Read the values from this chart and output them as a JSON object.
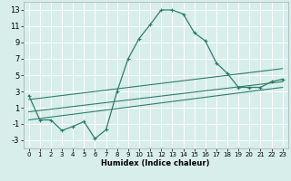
{
  "xlabel": "Humidex (Indice chaleur)",
  "xlim": [
    -0.5,
    23.5
  ],
  "ylim": [
    -4,
    14
  ],
  "yticks": [
    -3,
    -1,
    1,
    3,
    5,
    7,
    9,
    11,
    13
  ],
  "xticks": [
    0,
    1,
    2,
    3,
    4,
    5,
    6,
    7,
    8,
    9,
    10,
    11,
    12,
    13,
    14,
    15,
    16,
    17,
    18,
    19,
    20,
    21,
    22,
    23
  ],
  "background_color": "#d8eeeb",
  "grid_color": "#ffffff",
  "line_color": "#2e7d6e",
  "curve1_x": [
    0,
    1,
    2,
    3,
    4,
    5,
    6,
    7,
    8,
    9,
    10,
    11,
    12,
    13,
    14,
    15,
    16,
    17,
    18,
    19,
    20,
    21,
    22,
    23
  ],
  "curve1_y": [
    2.5,
    -0.5,
    -0.5,
    -1.8,
    -1.3,
    -0.7,
    -2.8,
    -1.7,
    3.0,
    7.0,
    9.5,
    11.2,
    13.0,
    13.0,
    12.5,
    10.2,
    9.2,
    6.5,
    5.2,
    3.5,
    3.5,
    3.5,
    4.2,
    4.5
  ],
  "line1_x": [
    0,
    23
  ],
  "line1_y": [
    2.0,
    5.8
  ],
  "line2_x": [
    0,
    23
  ],
  "line2_y": [
    0.5,
    4.2
  ],
  "line3_x": [
    0,
    23
  ],
  "line3_y": [
    -0.5,
    3.5
  ]
}
